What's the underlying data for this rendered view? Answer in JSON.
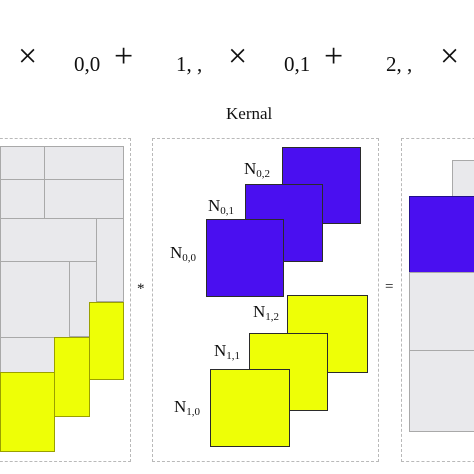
{
  "equation": {
    "times_1": "×",
    "sub_1": "0,0",
    "plus_1": "+",
    "sub_2": "1, ,",
    "times_2": "×",
    "sub_3": "0,1",
    "plus_2": "+",
    "sub_4": "2, ,",
    "times_3": "×"
  },
  "kernel": {
    "title": "Kernal",
    "labels": {
      "n00": {
        "base": "N",
        "sub": "0,0"
      },
      "n01": {
        "base": "N",
        "sub": "0,1"
      },
      "n02": {
        "base": "N",
        "sub": "0,2"
      },
      "n10": {
        "base": "N",
        "sub": "1,0"
      },
      "n11": {
        "base": "N",
        "sub": "1,1"
      },
      "n12": {
        "base": "N",
        "sub": "1,2"
      }
    }
  },
  "operators": {
    "convolve": "*",
    "equals": "="
  },
  "colors": {
    "gray": "#e9e9ec",
    "yellow": "#eeff06",
    "blue": "#4a0ff0"
  }
}
